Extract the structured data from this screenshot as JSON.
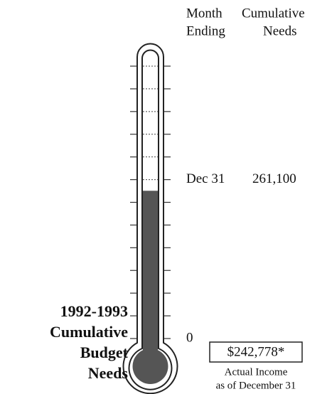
{
  "chart_data": {
    "type": "thermometer",
    "title_lines": [
      "1992-1993",
      "Cumulative",
      "Budget",
      "Needs"
    ],
    "column_headers": [
      [
        "Month",
        "Ending"
      ],
      [
        "Cumulative",
        "Needs"
      ]
    ],
    "value": 242778,
    "value_label": "$242,778*",
    "annotation_lines": [
      "Actual Income",
      "as of December 31"
    ],
    "color": "#555555",
    "ylim": [
      0,
      447600
    ],
    "yticks": [
      0,
      {
        "value": 261100,
        "label": "261,100"
      }
    ],
    "tick_months": [
      null,
      "Dec 31"
    ],
    "minor_ticks": [
      0,
      37300,
      74600,
      111900,
      149200,
      186500,
      223800,
      261100,
      298400,
      335700,
      373000,
      410300,
      447600
    ]
  }
}
